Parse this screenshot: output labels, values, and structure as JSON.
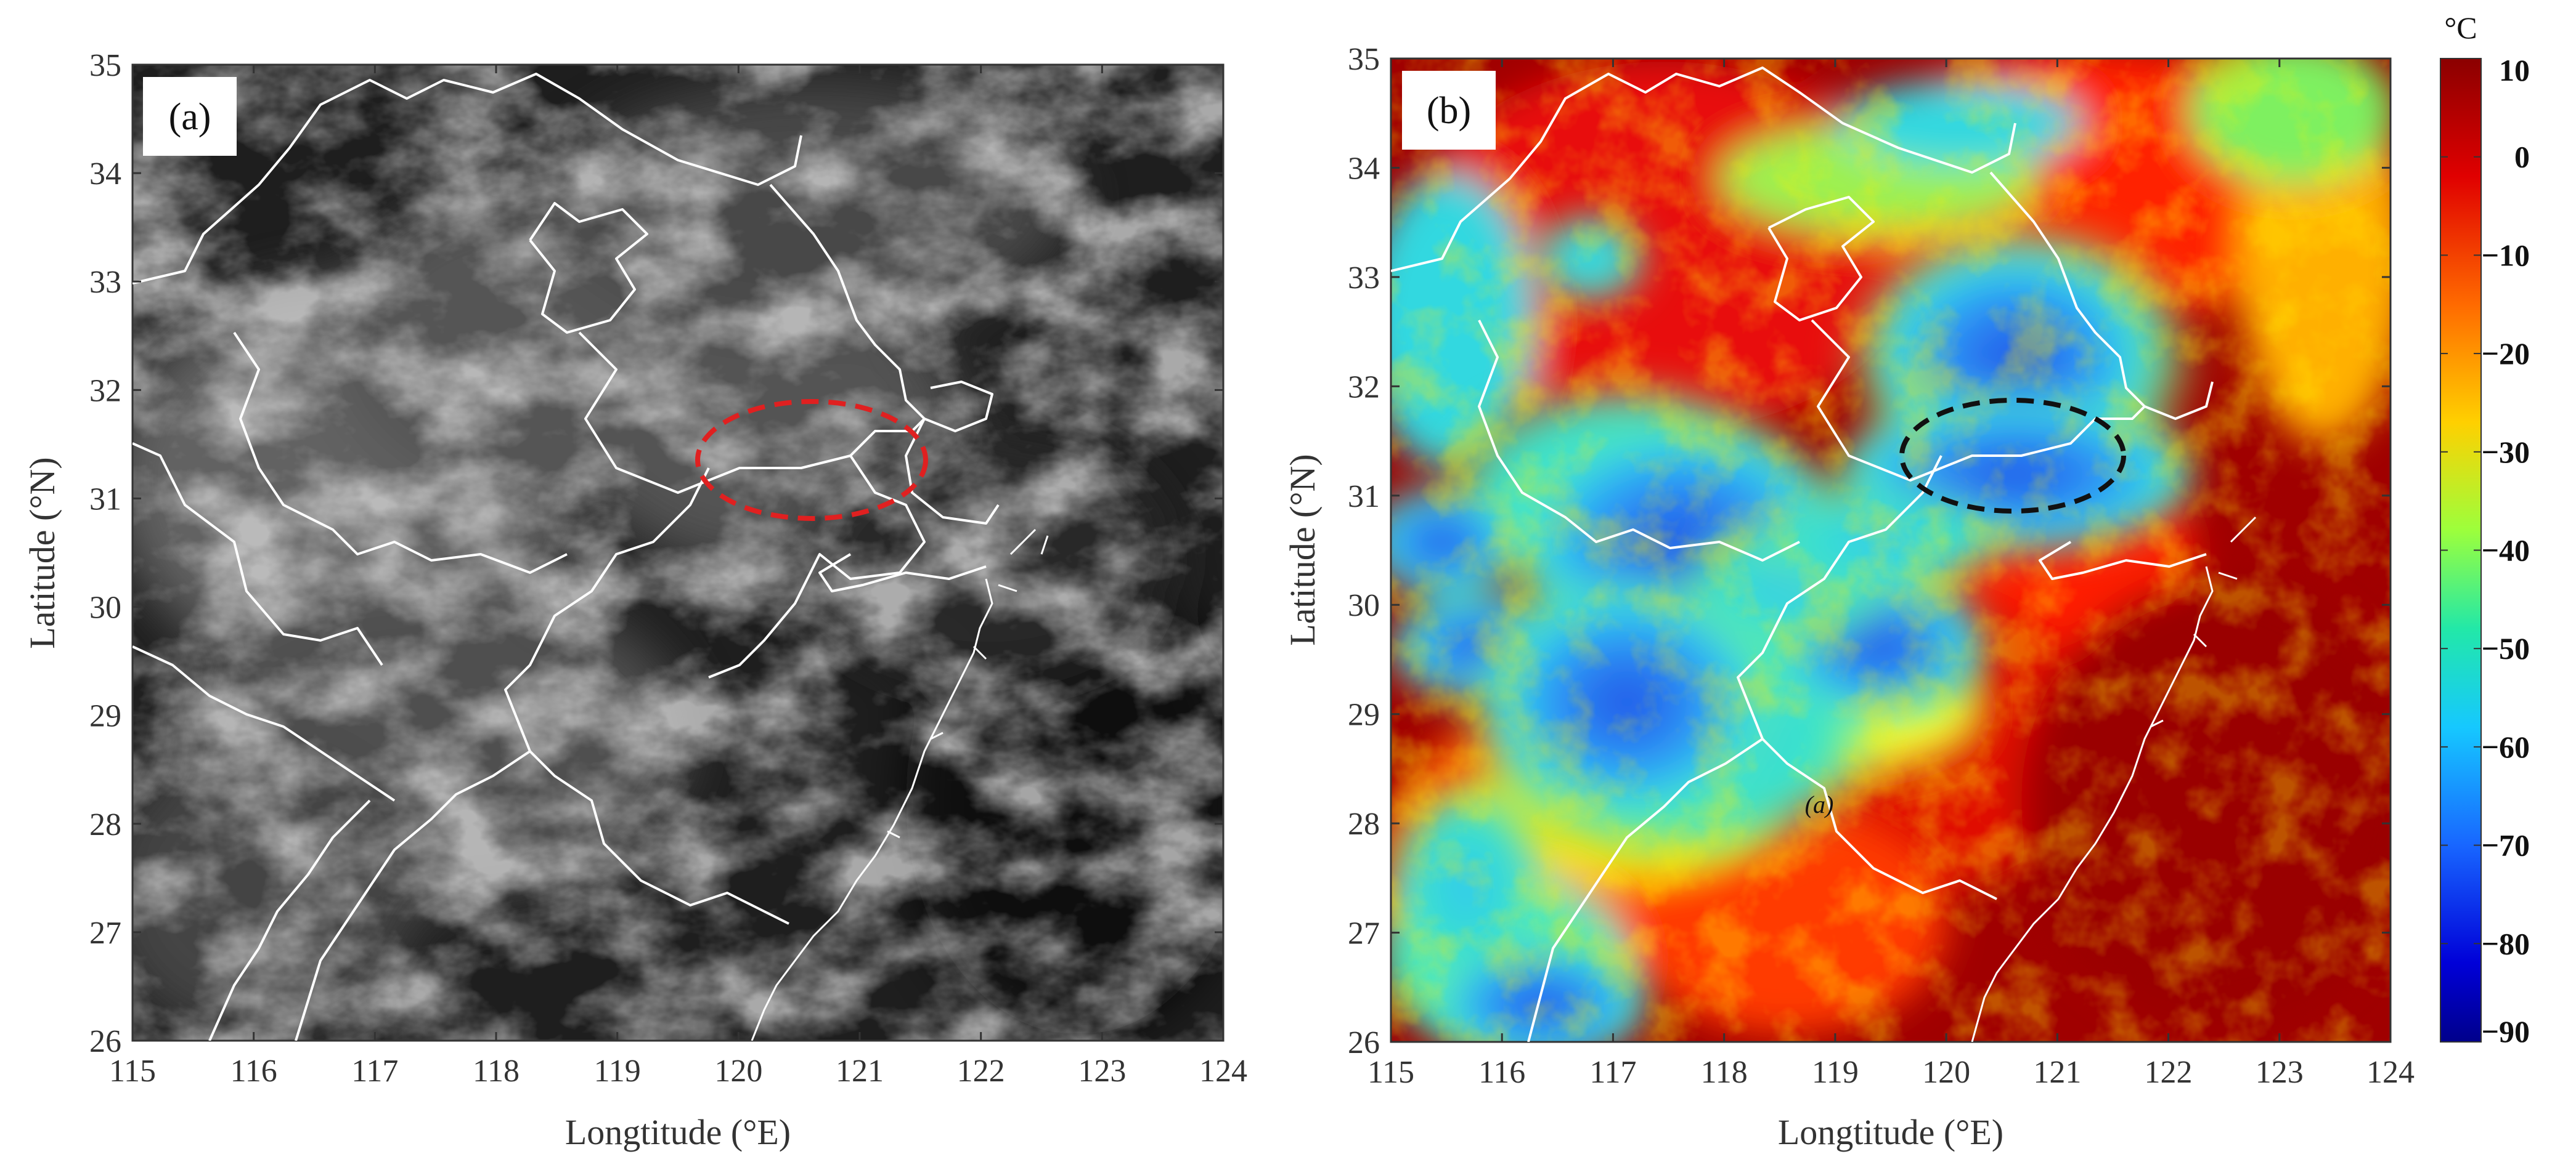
{
  "chart_data": [
    {
      "type": "heatmap",
      "panel_label": "(a)",
      "xlabel": "Longtitude (°E)",
      "ylabel": "Latitude (°N)",
      "xlim": [
        115,
        124
      ],
      "ylim": [
        26,
        35
      ],
      "x_ticks": [
        "115",
        "116",
        "117",
        "118",
        "119",
        "120",
        "121",
        "122",
        "123",
        "124"
      ],
      "y_ticks": [
        "26",
        "27",
        "28",
        "29",
        "30",
        "31",
        "32",
        "33",
        "34",
        "35"
      ],
      "colormap": "grayscale",
      "annotation": {
        "shape": "dashed-ellipse",
        "color": "#e02020",
        "center_lon": 120.55,
        "center_lat": 31.35,
        "half_width_lon": 0.95,
        "half_height_lat": 0.55
      }
    },
    {
      "type": "heatmap",
      "panel_label": "(b)",
      "xlabel": "Longtitude (°E)",
      "ylabel": "Latitude (°N)",
      "xlim": [
        115,
        124
      ],
      "ylim": [
        26,
        35
      ],
      "x_ticks": [
        "115",
        "116",
        "117",
        "118",
        "119",
        "120",
        "121",
        "122",
        "123",
        "124"
      ],
      "y_ticks": [
        "26",
        "27",
        "28",
        "29",
        "30",
        "31",
        "32",
        "33",
        "34",
        "35"
      ],
      "colormap": "jet",
      "annotation": {
        "shape": "dashed-ellipse",
        "color": "#111111",
        "center_lon": 120.6,
        "center_lat": 31.4,
        "half_width_lon": 1.0,
        "half_height_lat": 0.5
      },
      "inline_label": "(a)",
      "inline_label_pos": {
        "lon": 118.9,
        "lat": 28.2
      },
      "colorbar": {
        "unit": "°C",
        "ticks": [
          "10",
          "0",
          "−10",
          "−20",
          "−30",
          "−40",
          "−50",
          "−60",
          "−70",
          "−80",
          "−90"
        ],
        "range": [
          10,
          -90
        ]
      }
    }
  ]
}
